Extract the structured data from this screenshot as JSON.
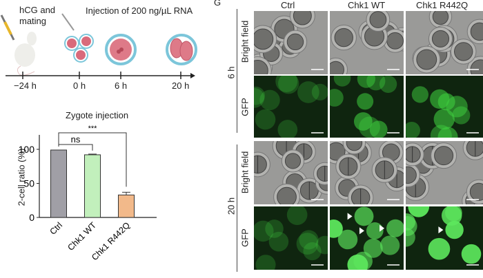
{
  "schematic": {
    "step1_label": "hCG and\nmating",
    "step2_label": "Injection of 200 ng/µL RNA",
    "timepoints": [
      "−24 h",
      "0 h",
      "6 h",
      "20 h"
    ]
  },
  "chart_data": {
    "type": "bar",
    "title": "Zygote injection",
    "xlabel": "",
    "ylabel": "2-cell ratio (%)",
    "ylim": [
      0,
      120
    ],
    "yticks": [
      "0",
      "50",
      "100"
    ],
    "categories": [
      "Ctrl",
      "Chk1 WT",
      "Chk1 R442Q"
    ],
    "values": [
      99,
      92,
      33
    ],
    "errors": [
      0,
      1,
      4
    ],
    "colors": [
      "#a09fa6",
      "#c2f0bc",
      "#f2b98a"
    ],
    "significance": [
      {
        "from": "Ctrl",
        "to": "Chk1 WT",
        "label": "ns"
      },
      {
        "from": "Ctrl",
        "to": "Chk1 R442Q",
        "label": "***"
      }
    ]
  },
  "panel_g": {
    "panel_letter": "G",
    "columns": [
      "Ctrl",
      "Chk1 WT",
      "Chk1 R442Q"
    ],
    "time_groups": [
      "6 h",
      "20 h"
    ],
    "row_labels": [
      "Bright field",
      "GFP"
    ],
    "gfp_color": "#3fd03f"
  }
}
